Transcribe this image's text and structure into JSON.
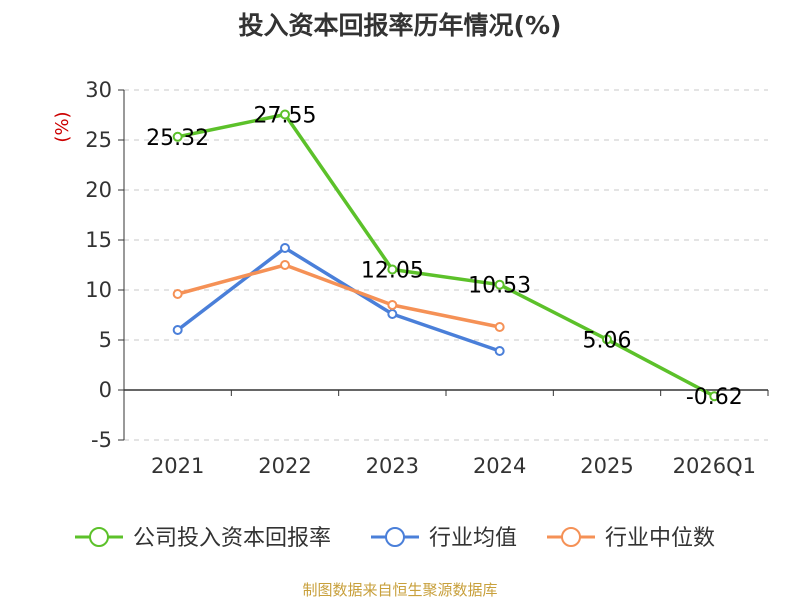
{
  "chart_data": {
    "type": "line",
    "title": "投入资本回报率历年情况(%)",
    "ylabel": "(%)",
    "categories": [
      "2021",
      "2022",
      "2023",
      "2024",
      "2025",
      "2026Q1"
    ],
    "yticks": [
      "30",
      "25",
      "20",
      "15",
      "10",
      "5",
      "0",
      "-5"
    ],
    "ylim": [
      -5,
      30
    ],
    "grid": true,
    "legend_position": "bottom",
    "series": [
      {
        "name": "公司投入资本回报率",
        "color": "#5cc12a",
        "values": [
          25.32,
          27.55,
          12.05,
          10.53,
          5.06,
          -0.62
        ],
        "labels": [
          "25.32",
          "27.55",
          "12.05",
          "10.53",
          "5.06",
          "-0.62"
        ]
      },
      {
        "name": "行业均值",
        "color": "#4a7fd9",
        "values": [
          6.0,
          14.2,
          7.6,
          3.9,
          null,
          null
        ]
      },
      {
        "name": "行业中位数",
        "color": "#f59156",
        "values": [
          9.6,
          12.5,
          8.5,
          6.3,
          null,
          null
        ]
      }
    ]
  },
  "footer": {
    "source": "制图数据来自恒生聚源数据库"
  }
}
